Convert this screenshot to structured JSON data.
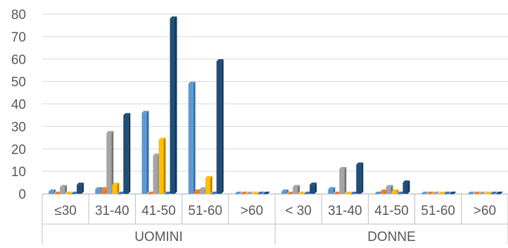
{
  "chart_data": {
    "type": "bar",
    "bar_style": "3d-clustered",
    "yaxis": {
      "ticks": [
        0,
        10,
        20,
        30,
        40,
        50,
        60,
        70,
        80
      ],
      "ylim": [
        0,
        80
      ]
    },
    "grid": true,
    "groups": [
      {
        "label": "UOMINI",
        "categories": [
          "≤30",
          "31-40",
          "41-50",
          "51-60",
          ">60"
        ]
      },
      {
        "label": "DONNE",
        "categories": [
          "< 30",
          "31-40",
          "41-50",
          "51-60",
          ">60"
        ]
      }
    ],
    "series_colors": [
      "#5B9BD5",
      "#ED7D31",
      "#A5A5A5",
      "#FFC000",
      "#4472C4",
      "#1F4E79"
    ],
    "series": [
      {
        "values": [
          1,
          2,
          36,
          49,
          0,
          1,
          2,
          0,
          0,
          0
        ]
      },
      {
        "values": [
          0,
          2,
          0,
          1,
          0,
          0,
          0,
          1,
          0,
          0
        ]
      },
      {
        "values": [
          3,
          27,
          17,
          2,
          0,
          3,
          11,
          3,
          0,
          0
        ]
      },
      {
        "values": [
          0,
          4,
          24,
          7,
          0,
          0,
          0,
          1,
          0,
          0
        ]
      },
      {
        "values": [
          0,
          0,
          0,
          0,
          0,
          0,
          0,
          0,
          0,
          0
        ]
      },
      {
        "values": [
          4,
          35,
          78,
          59,
          0,
          4,
          13,
          5,
          0,
          0
        ]
      }
    ]
  }
}
